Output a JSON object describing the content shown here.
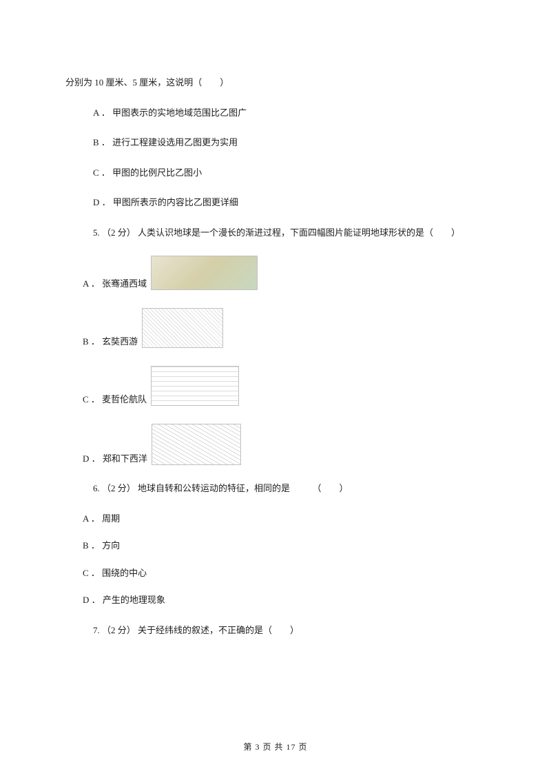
{
  "q4_intro": "分别为 10 厘米、5 厘米，这说明（　　）",
  "q4": {
    "A": "A ． 甲图表示的实地地域范围比乙图广",
    "B": "B ． 进行工程建设选用乙图更为实用",
    "C": "C ． 甲图的比例尺比乙图小",
    "D": "D ． 甲图所表示的内容比乙图更详细"
  },
  "q5_stem": "5. （2 分） 人类认识地球是一个漫长的渐进过程，下面四幅图片能证明地球形状的是（　　）",
  "q5": {
    "A": "A ． 张骞通西域",
    "B": "B ． 玄奘西游",
    "C": "C ． 麦哲伦航队",
    "D": "D ． 郑和下西洋"
  },
  "q6_stem": "6. （2 分） 地球自转和公转运动的特征，相同的是　　　（　　）",
  "q6": {
    "A": "A ． 周期",
    "B": "B ． 方向",
    "C": "C ． 围绕的中心",
    "D": "D ． 产生的地理现象"
  },
  "q7_stem": "7. （2 分） 关于经纬线的叙述，不正确的是（　　）",
  "footer": "第 3 页 共 17 页"
}
